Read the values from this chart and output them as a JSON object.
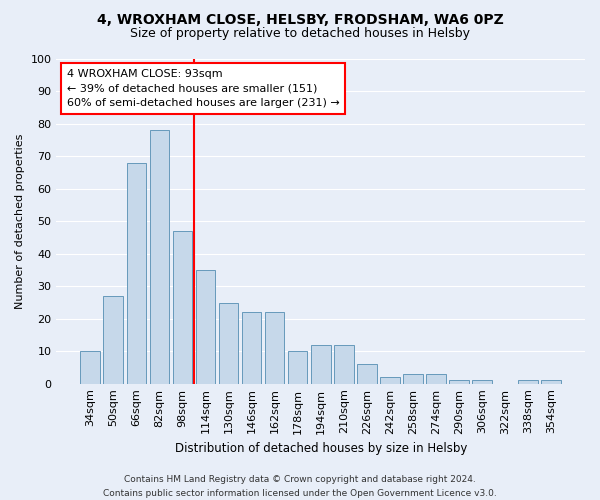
{
  "title1": "4, WROXHAM CLOSE, HELSBY, FRODSHAM, WA6 0PZ",
  "title2": "Size of property relative to detached houses in Helsby",
  "xlabel": "Distribution of detached houses by size in Helsby",
  "ylabel": "Number of detached properties",
  "categories": [
    "34sqm",
    "50sqm",
    "66sqm",
    "82sqm",
    "98sqm",
    "114sqm",
    "130sqm",
    "146sqm",
    "162sqm",
    "178sqm",
    "194sqm",
    "210sqm",
    "226sqm",
    "242sqm",
    "258sqm",
    "274sqm",
    "290sqm",
    "306sqm",
    "322sqm",
    "338sqm",
    "354sqm"
  ],
  "values": [
    10,
    27,
    68,
    78,
    47,
    35,
    25,
    22,
    22,
    10,
    12,
    12,
    6,
    2,
    3,
    3,
    1,
    1,
    0,
    1,
    1
  ],
  "bar_color": "#c6d8ea",
  "bar_edge_color": "#6699bb",
  "vline_x": 4.5,
  "vline_color": "red",
  "annotation_line1": "4 WROXHAM CLOSE: 93sqm",
  "annotation_line2": "← 39% of detached houses are smaller (151)",
  "annotation_line3": "60% of semi-detached houses are larger (231) →",
  "annotation_box_color": "white",
  "annotation_box_edge": "red",
  "ylim": [
    0,
    100
  ],
  "yticks": [
    0,
    10,
    20,
    30,
    40,
    50,
    60,
    70,
    80,
    90,
    100
  ],
  "bg_color": "#e8eef8",
  "grid_color": "white",
  "footer": "Contains HM Land Registry data © Crown copyright and database right 2024.\nContains public sector information licensed under the Open Government Licence v3.0."
}
